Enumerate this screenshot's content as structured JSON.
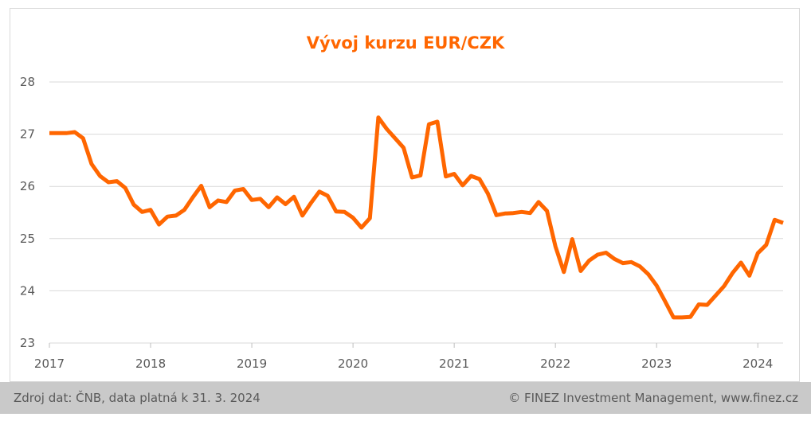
{
  "chart_data": {
    "type": "line",
    "title": "Vývoj kurzu EUR/CZK",
    "xlabel": "",
    "ylabel": "",
    "x_tick_labels": [
      "2017",
      "2018",
      "2019",
      "2020",
      "2021",
      "2022",
      "2023",
      "2024"
    ],
    "y_tick_labels": [
      "23",
      "24",
      "25",
      "26",
      "27",
      "28"
    ],
    "ylim": [
      23,
      28
    ],
    "xlim": [
      2017.0,
      2024.25
    ],
    "grid": true,
    "legend": "none",
    "series": [
      {
        "color": "#ff6600",
        "x": [
          "2017-01",
          "2017-02",
          "2017-03",
          "2017-04",
          "2017-05",
          "2017-06",
          "2017-07",
          "2017-08",
          "2017-09",
          "2017-10",
          "2017-11",
          "2017-12",
          "2018-01",
          "2018-02",
          "2018-03",
          "2018-04",
          "2018-05",
          "2018-06",
          "2018-07",
          "2018-08",
          "2018-09",
          "2018-10",
          "2018-11",
          "2018-12",
          "2019-01",
          "2019-02",
          "2019-03",
          "2019-04",
          "2019-05",
          "2019-06",
          "2019-07",
          "2019-08",
          "2019-09",
          "2019-10",
          "2019-11",
          "2019-12",
          "2020-01",
          "2020-02",
          "2020-03",
          "2020-04",
          "2020-05",
          "2020-06",
          "2020-07",
          "2020-08",
          "2020-09",
          "2020-10",
          "2020-11",
          "2020-12",
          "2021-01",
          "2021-02",
          "2021-03",
          "2021-04",
          "2021-05",
          "2021-06",
          "2021-07",
          "2021-08",
          "2021-09",
          "2021-10",
          "2021-11",
          "2021-12",
          "2022-01",
          "2022-02",
          "2022-03",
          "2022-04",
          "2022-05",
          "2022-06",
          "2022-07",
          "2022-08",
          "2022-09",
          "2022-10",
          "2022-11",
          "2022-12",
          "2023-01",
          "2023-02",
          "2023-03",
          "2023-04",
          "2023-05",
          "2023-06",
          "2023-07",
          "2023-08",
          "2023-09",
          "2023-10",
          "2023-11",
          "2023-12",
          "2024-01",
          "2024-02",
          "2024-03",
          "2024-04"
        ],
        "values": [
          27.02,
          27.02,
          27.02,
          27.04,
          26.92,
          26.43,
          26.2,
          26.08,
          26.1,
          25.97,
          25.65,
          25.51,
          25.55,
          25.27,
          25.42,
          25.44,
          25.55,
          25.79,
          26.01,
          25.6,
          25.73,
          25.7,
          25.92,
          25.95,
          25.74,
          25.76,
          25.6,
          25.79,
          25.66,
          25.8,
          25.44,
          25.68,
          25.9,
          25.82,
          25.52,
          25.51,
          25.4,
          25.21,
          25.39,
          27.32,
          27.1,
          26.92,
          26.74,
          26.17,
          26.21,
          27.19,
          27.24,
          26.19,
          26.24,
          26.02,
          26.2,
          26.14,
          25.86,
          25.45,
          25.48,
          25.49,
          25.51,
          25.49,
          25.7,
          25.53,
          24.85,
          24.36,
          24.99,
          24.38,
          24.58,
          24.69,
          24.73,
          24.61,
          24.53,
          24.55,
          24.47,
          24.32,
          24.1,
          23.8,
          23.49,
          23.49,
          23.5,
          23.74,
          23.73,
          23.91,
          24.09,
          24.34,
          24.54,
          24.29,
          24.72,
          24.88,
          25.36,
          25.3
        ]
      }
    ]
  },
  "footer": {
    "source": "Zdroj dat: ČNB, data platná k 31. 3. 2024",
    "copyright": "© FINEZ Investment Management, www.finez.cz"
  }
}
